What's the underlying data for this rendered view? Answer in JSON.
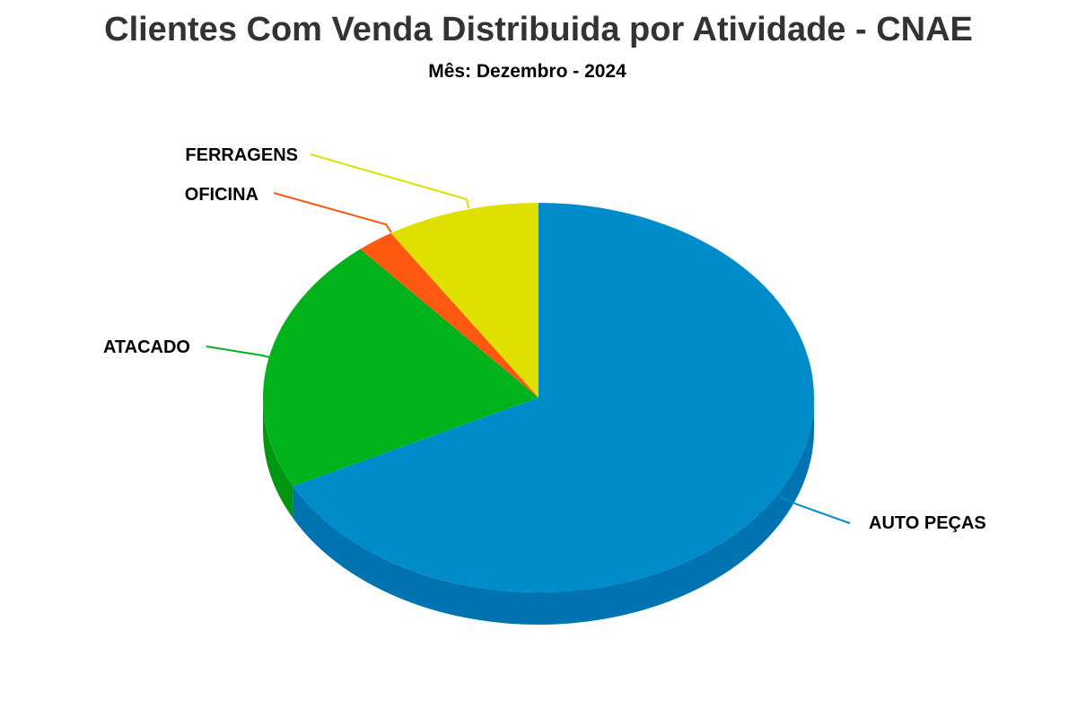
{
  "chart_data": {
    "type": "pie",
    "title": "Clientes Com Venda Distribuida por Atividade - CNAE",
    "subtitle": "Mês: Dezembro - 2024",
    "three_d": true,
    "slices": [
      {
        "label": "AUTO PEÇAS",
        "value": 67.5,
        "color": "#008ccb",
        "side_color": "#0073b0"
      },
      {
        "label": "ATACADO",
        "value": 21.3,
        "color": "#00b31b",
        "side_color": "#009612"
      },
      {
        "label": "OFICINA",
        "value": 2.2,
        "color": "#ff5810",
        "side_color": "#d94808"
      },
      {
        "label": "FERRAGENS",
        "value": 9.0,
        "color": "#dfe000",
        "side_color": "#bcbc00"
      }
    ]
  }
}
